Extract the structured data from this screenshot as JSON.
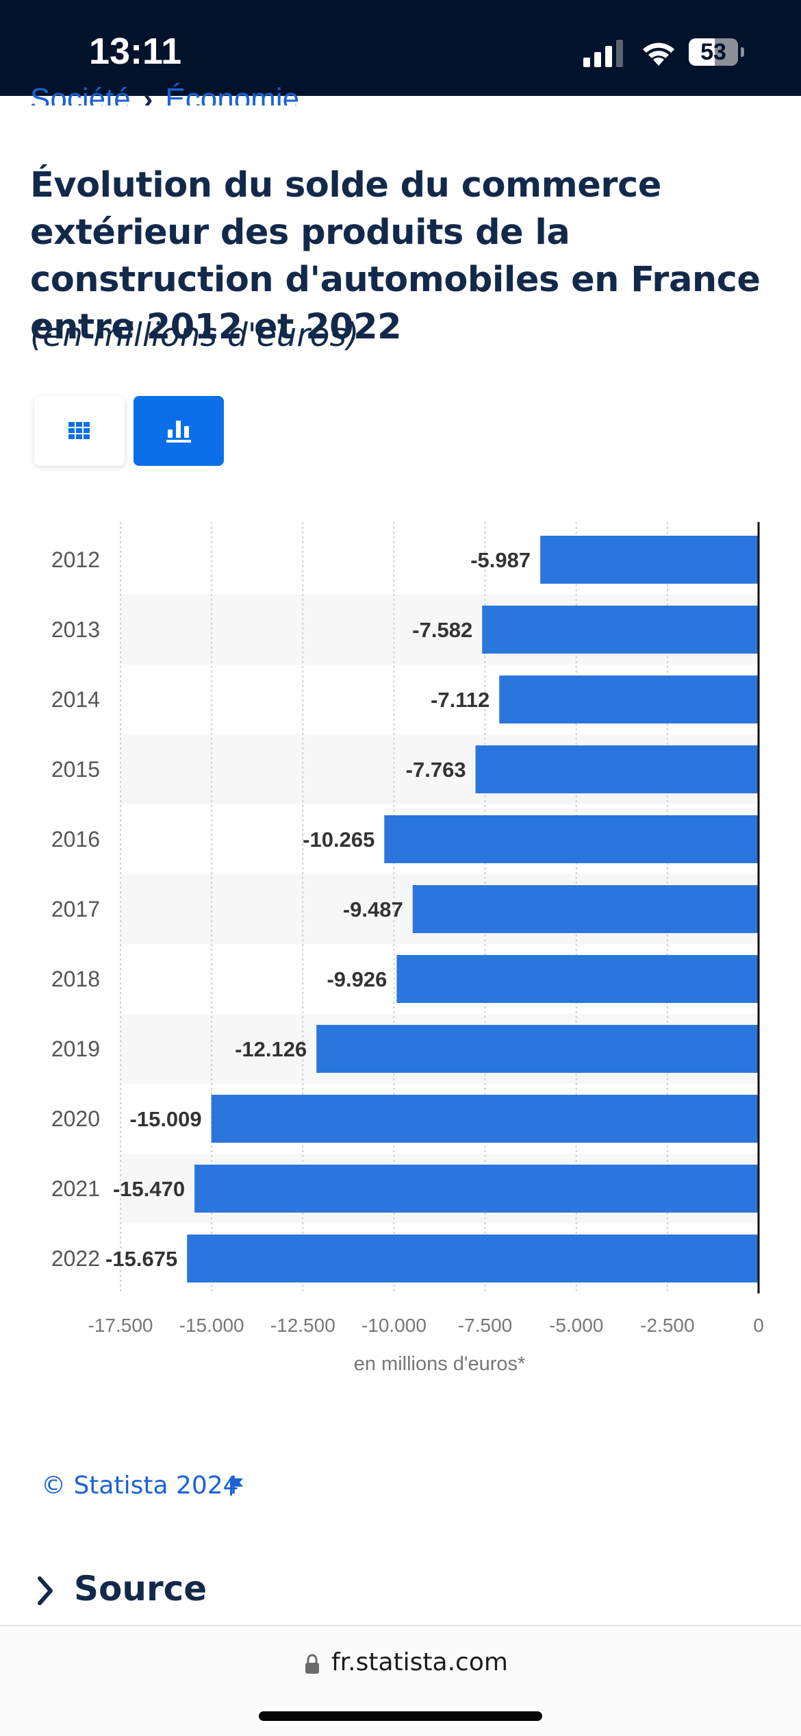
{
  "status_bar": {
    "time": "13:11",
    "battery": "53",
    "battery_level": 53
  },
  "breadcrumb": {
    "items": [
      "Société",
      "Économie"
    ],
    "separator": "›"
  },
  "page": {
    "title": "Évolution du solde du commerce extérieur des produits de la construction d'automobiles en France entre 2012 et 2022",
    "subtitle": "(en millions d'euros)"
  },
  "view_toggle": {
    "table_icon": "grid-icon",
    "chart_icon": "bar-chart-icon",
    "active": "chart"
  },
  "chart_data": {
    "type": "bar",
    "orientation": "horizontal",
    "categories": [
      "2012",
      "2013",
      "2014",
      "2015",
      "2016",
      "2017",
      "2018",
      "2019",
      "2020",
      "2021",
      "2022"
    ],
    "values": [
      -5987,
      -7582,
      -7112,
      -7763,
      -10265,
      -9487,
      -9926,
      -12126,
      -15009,
      -15470,
      -15675
    ],
    "value_labels": [
      "-5.987",
      "-7.582",
      "-7.112",
      "-7.763",
      "-10.265",
      "-9.487",
      "-9.926",
      "-12.126",
      "-15.009",
      "-15.470",
      "-15.675"
    ],
    "xlim": [
      -17500,
      0
    ],
    "x_ticks": [
      -17500,
      -15000,
      -12500,
      -10000,
      -7500,
      -5000,
      -2500,
      0
    ],
    "x_tick_labels": [
      "-17.500",
      "-15.000",
      "-12.500",
      "-10.000",
      "-7.500",
      "-5.000",
      "-2.500",
      "0"
    ],
    "xlabel": "en millions d'euros*",
    "grid": true,
    "bar_color": "#2a76dd",
    "stripe_color": "#f7f7f7"
  },
  "footer": {
    "copyright": "© Statista 2024",
    "source_label": "Source",
    "url": "fr.statista.com"
  },
  "colors": {
    "brand_blue": "#0a6fe8",
    "navy": "#13294b",
    "status_bg": "#02122a"
  }
}
